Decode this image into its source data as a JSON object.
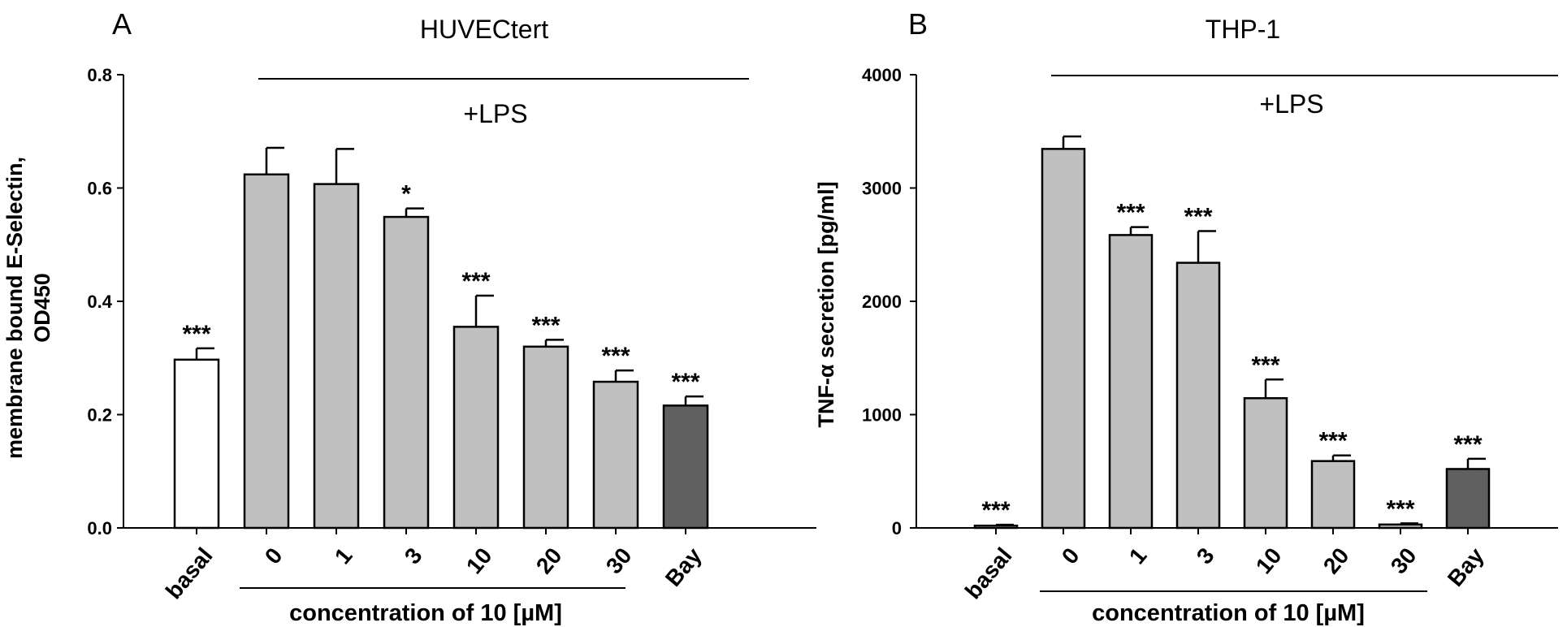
{
  "chart_data": [
    {
      "panel": "A",
      "type": "bar",
      "title": "HUVECtert",
      "treatment_label": "+LPS",
      "ylabel_lines": [
        "membrane bound E-Selectin,",
        "OD450"
      ],
      "xgroup_label": "concentration of 10 [µM]",
      "categories": [
        "basal",
        "0",
        "1",
        "3",
        "10",
        "20",
        "30",
        "Bay"
      ],
      "values": [
        0.297,
        0.624,
        0.607,
        0.549,
        0.355,
        0.32,
        0.258,
        0.216
      ],
      "errors": [
        0.02,
        0.047,
        0.062,
        0.015,
        0.055,
        0.012,
        0.02,
        0.016
      ],
      "significance": [
        "***",
        "",
        "",
        "*",
        "***",
        "***",
        "***",
        "***"
      ],
      "ylim": [
        0,
        0.8
      ],
      "yticks": [
        0.0,
        0.2,
        0.4,
        0.6,
        0.8
      ],
      "ytick_labels": [
        "0.0",
        "0.2",
        "0.4",
        "0.6",
        "0.8"
      ],
      "bar_colors": [
        "#ffffff",
        "#c0c0c0",
        "#c0c0c0",
        "#c0c0c0",
        "#c0c0c0",
        "#c0c0c0",
        "#c0c0c0",
        "#606060"
      ]
    },
    {
      "panel": "B",
      "type": "bar",
      "title": "THP-1",
      "treatment_label": "+LPS",
      "ylabel_lines": [
        "TNF-α secretion [pg/ml]"
      ],
      "xgroup_label": "concentration of 10 [µM]",
      "categories": [
        "basal",
        "0",
        "1",
        "3",
        "10",
        "20",
        "30",
        "Bay"
      ],
      "values": [
        20,
        3345,
        2585,
        2340,
        1145,
        590,
        30,
        520
      ],
      "errors": [
        8,
        110,
        70,
        280,
        165,
        50,
        10,
        90
      ],
      "significance": [
        "***",
        "",
        "***",
        "***",
        "***",
        "***",
        "***",
        "***"
      ],
      "ylim": [
        0,
        4000
      ],
      "yticks": [
        0,
        1000,
        2000,
        3000,
        4000
      ],
      "ytick_labels": [
        "0",
        "1000",
        "2000",
        "3000",
        "4000"
      ],
      "bar_colors": [
        "#ffffff",
        "#c0c0c0",
        "#c0c0c0",
        "#c0c0c0",
        "#c0c0c0",
        "#c0c0c0",
        "#c0c0c0",
        "#606060"
      ]
    }
  ]
}
